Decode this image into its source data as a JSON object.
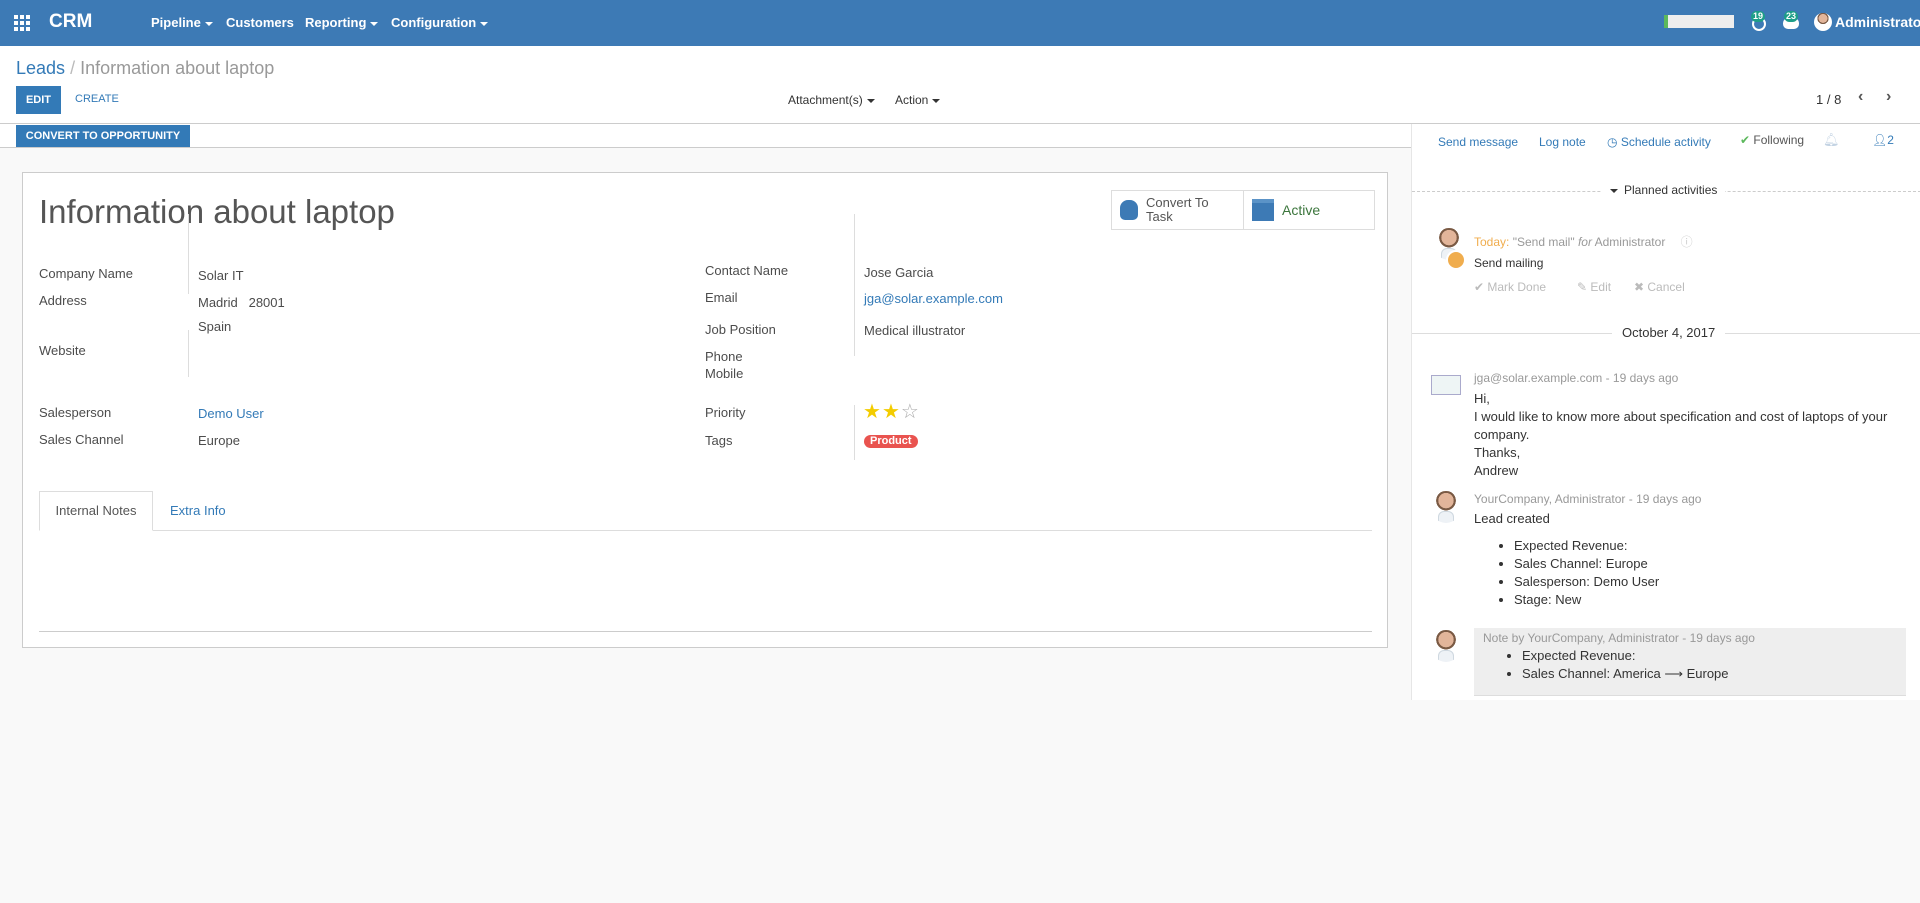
{
  "navbar": {
    "app_name": "CRM",
    "menus": [
      "Pipeline",
      "Customers",
      "Reporting",
      "Configuration"
    ],
    "menu_has_dropdown": [
      true,
      false,
      true,
      true
    ],
    "activity_count": "19",
    "message_count": "23",
    "user": "Administrator",
    "brand_color": "#3d7ab5"
  },
  "breadcrumb": {
    "parent": "Leads",
    "current": "Information about laptop"
  },
  "toolbar": {
    "edit": "EDIT",
    "create": "CREATE",
    "attachments": "Attachment(s)",
    "action": "Action",
    "pager": "1 / 8"
  },
  "statusbar": {
    "convert": "CONVERT TO OPPORTUNITY"
  },
  "form": {
    "title": "Information about laptop",
    "buttons": {
      "convert_task": [
        "Convert To",
        "Task"
      ],
      "active": "Active"
    },
    "left": {
      "company_label": "Company Name",
      "company": "Solar IT",
      "address_label": "Address",
      "city": "Madrid",
      "zip": "28001",
      "country": "Spain",
      "website_label": "Website",
      "salesperson_label": "Salesperson",
      "salesperson": "Demo User",
      "channel_label": "Sales Channel",
      "channel": "Europe"
    },
    "right": {
      "contact_label": "Contact Name",
      "contact": "Jose Garcia",
      "email_label": "Email",
      "email": "jga@solar.example.com",
      "job_label": "Job Position",
      "job": "Medical illustrator",
      "phone_label": "Phone",
      "mobile_label": "Mobile",
      "priority_label": "Priority",
      "priority_value": 2,
      "priority_max": 3,
      "tags_label": "Tags",
      "tag": "Product",
      "tag_color": "#e9534f"
    },
    "tabs": [
      "Internal Notes",
      "Extra Info"
    ]
  },
  "chatter": {
    "send_message": "Send message",
    "log_note": "Log note",
    "schedule": "Schedule activity",
    "following": "Following",
    "followers": "2",
    "planned": "Planned activities",
    "activity": {
      "when": "Today:",
      "summary": "\"Send mail\"",
      "for": "for",
      "user": "Administrator",
      "note": "Send mailing",
      "mark_done": "Mark Done",
      "edit": "Edit",
      "cancel": "Cancel"
    },
    "date": "October 4, 2017",
    "messages": [
      {
        "author": "jga@solar.example.com",
        "time": "- 19 days ago",
        "lines": [
          "Hi,",
          "I would like to know more about specification and cost of laptops of your",
          "company.",
          "Thanks,",
          "Andrew"
        ]
      },
      {
        "author": "YourCompany, Administrator",
        "time": "- 19 days ago",
        "body": "Lead created",
        "items": [
          "Expected Revenue:",
          "Sales Channel: Europe",
          "Salesperson: Demo User",
          "Stage: New"
        ]
      },
      {
        "author": "Note by YourCompany, Administrator",
        "time": "- 19 days ago",
        "items": [
          "Expected Revenue:",
          "Sales Channel: America ⟶ Europe"
        ]
      }
    ]
  }
}
